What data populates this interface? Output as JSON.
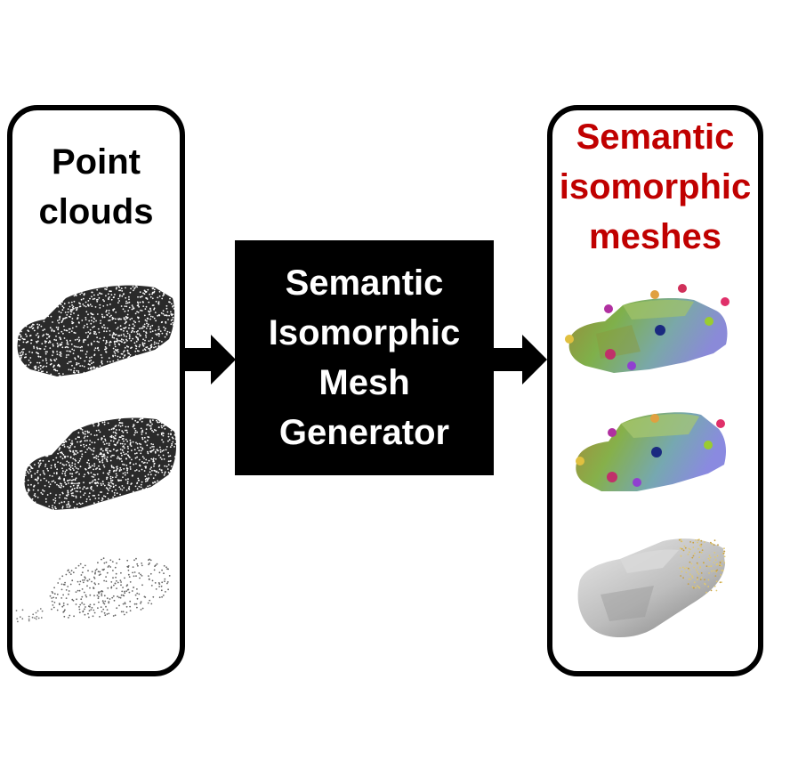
{
  "left_panel": {
    "title_lines": [
      "Point",
      "clouds"
    ]
  },
  "generator": {
    "label_lines": [
      "Semantic",
      "Isomorphic",
      "Mesh",
      "Generator"
    ]
  },
  "right_panel": {
    "title_lines": [
      "Semantic",
      "isomorphic",
      "meshes"
    ],
    "title_color": "#c00000"
  },
  "colors": {
    "border": "#000000",
    "generator_bg": "#000000",
    "generator_text": "#ffffff"
  }
}
